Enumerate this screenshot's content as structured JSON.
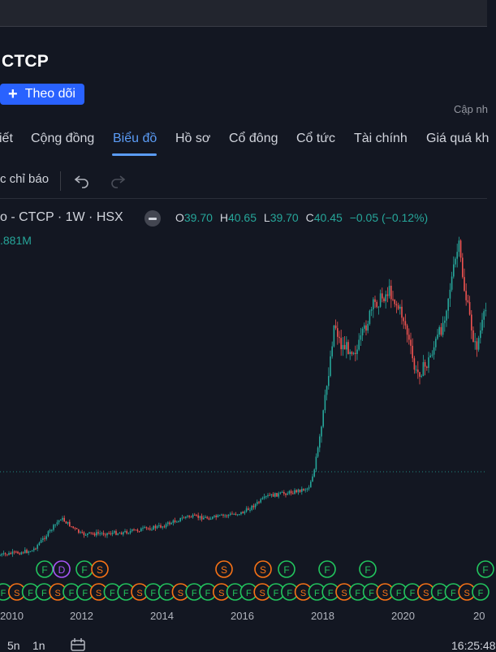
{
  "company": {
    "name": "CTCP"
  },
  "follow_button": {
    "label": "Theo dõi",
    "icon": "plus-icon"
  },
  "update_text": "Cập nh",
  "tabs": [
    {
      "label": "iết"
    },
    {
      "label": "Cộng đồng"
    },
    {
      "label": "Biểu đồ",
      "active": true
    },
    {
      "label": "Hồ sơ"
    },
    {
      "label": "Cổ đông"
    },
    {
      "label": "Cổ tức"
    },
    {
      "label": "Tài chính"
    },
    {
      "label": "Giá quá kh"
    }
  ],
  "toolbar": {
    "indicators_label": "c chỉ báo",
    "undo_icon": "undo-icon",
    "redo_icon": "redo-icon"
  },
  "chart_header": {
    "symbol": "o - CTCP · 1W · HSX",
    "open_label": "O",
    "open": "39.70",
    "high_label": "H",
    "high": "40.65",
    "low_label": "L",
    "low": "39.70",
    "close_label": "C",
    "close": "40.45",
    "change": "−0.05 (−0.12%)",
    "volume": ".881M"
  },
  "colors": {
    "up": "#26a69a",
    "down": "#ef5350",
    "accent": "#2962ff",
    "tab_active": "#5b9cf6",
    "background": "#131722"
  },
  "chart_data": {
    "type": "candlestick",
    "x_ticks": [
      "2010",
      "2012",
      "2014",
      "2016",
      "2018",
      "2020",
      "20"
    ],
    "last_close": 40.45,
    "event_markers": [
      {
        "label": "F",
        "color": "#22c55e"
      },
      {
        "label": "D",
        "color": "#a855f7"
      },
      {
        "label": "F",
        "color": "#22c55e"
      },
      {
        "label": "S",
        "color": "#f97316"
      },
      {
        "label": "S",
        "color": "#f97316"
      },
      {
        "label": "S",
        "color": "#f97316"
      },
      {
        "label": "F",
        "color": "#22c55e"
      },
      {
        "label": "F",
        "color": "#22c55e"
      },
      {
        "label": "F",
        "color": "#22c55e"
      }
    ]
  },
  "bottom_bar": {
    "range1": "5n",
    "range2": "1n",
    "calendar_icon": "calendar-icon",
    "time": "16:25:48"
  }
}
